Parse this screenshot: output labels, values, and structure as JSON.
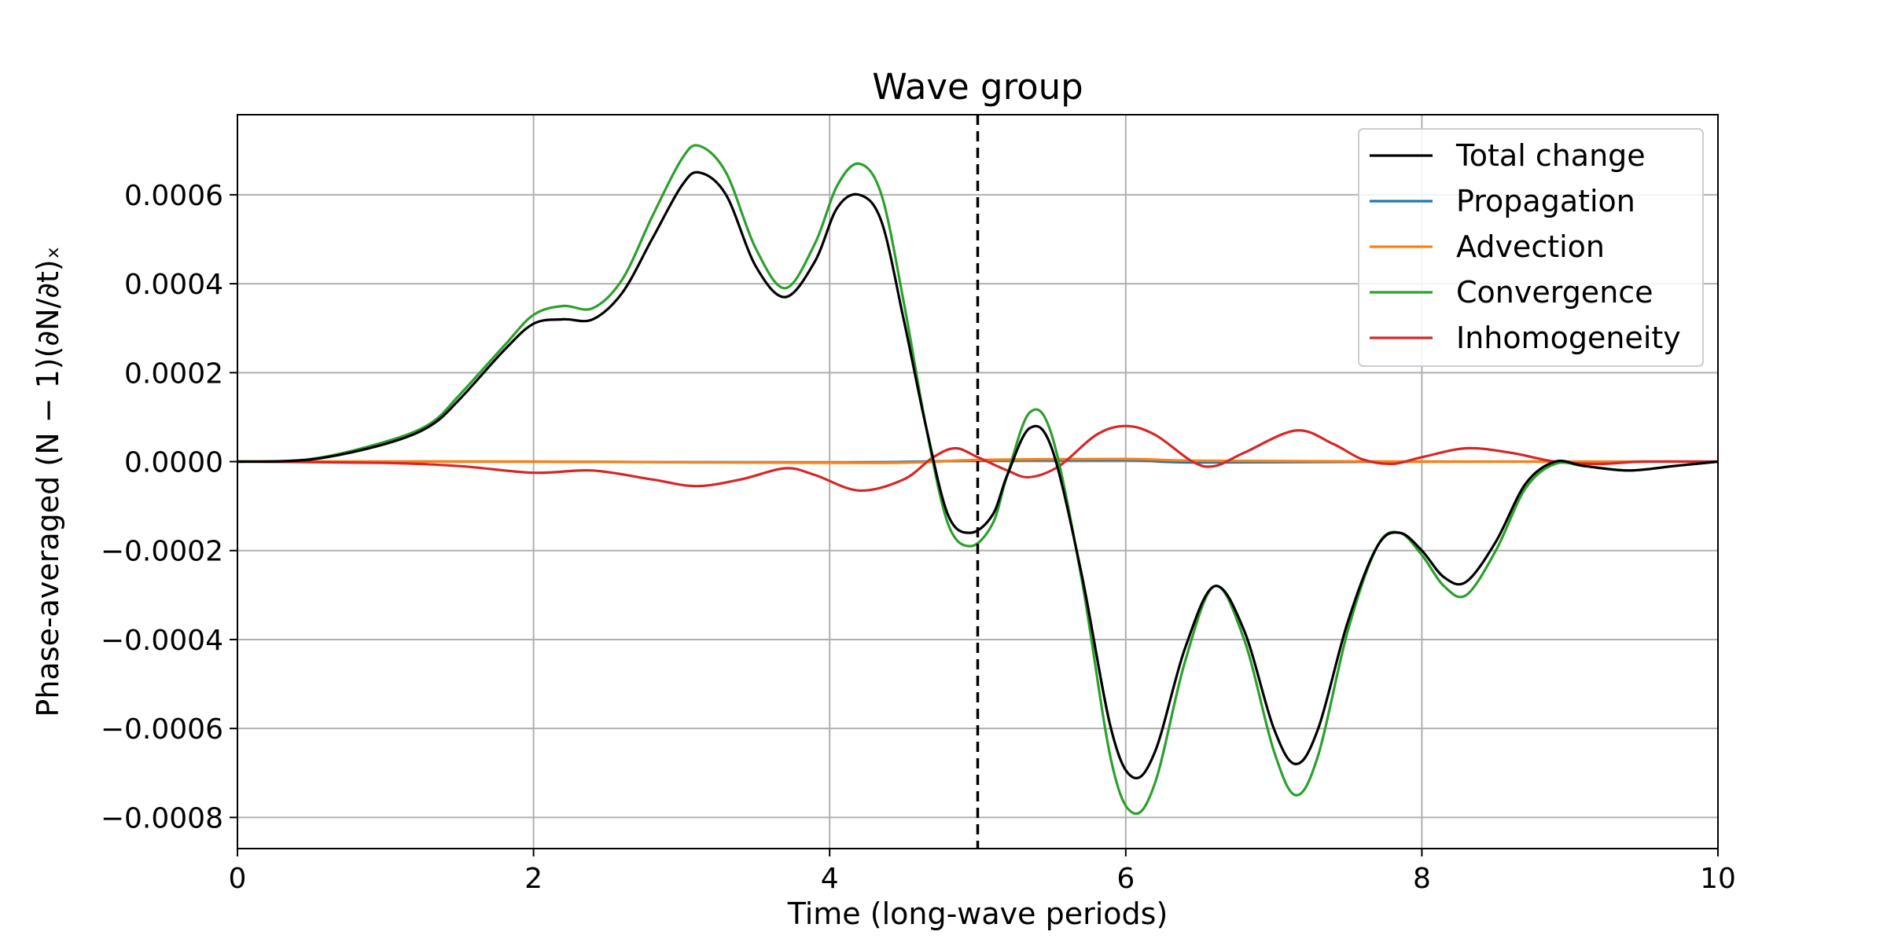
{
  "chart_data": {
    "type": "line",
    "title": "Wave group",
    "xlabel": "Time (long-wave periods)",
    "ylabel": "Phase-averaged (N − 1)(∂N/∂t)ₓ",
    "xlim": [
      0,
      10
    ],
    "ylim": [
      -0.00087,
      0.00078
    ],
    "xticks": [
      0,
      2,
      4,
      6,
      8,
      10
    ],
    "xtick_labels": [
      "0",
      "2",
      "4",
      "6",
      "8",
      "10"
    ],
    "yticks": [
      0.0006,
      0.0004,
      0.0002,
      0.0,
      -0.0002,
      -0.0004,
      -0.0006,
      -0.0008
    ],
    "ytick_labels": [
      "0.0006",
      "0.0004",
      "0.0002",
      "0.0000",
      "−0.0002",
      "−0.0004",
      "−0.0006",
      "−0.0008"
    ],
    "grid": true,
    "legend_position": "top-right",
    "vline": {
      "x": 5,
      "style": "dashed",
      "color": "#000000"
    },
    "series": [
      {
        "name": "Total change",
        "color": "#000000",
        "points": [
          [
            0,
            0
          ],
          [
            0.5,
            5e-06
          ],
          [
            1.0,
            4e-05
          ],
          [
            1.3,
            8e-05
          ],
          [
            1.5,
            0.00014
          ],
          [
            1.8,
            0.00025
          ],
          [
            2.0,
            0.00031
          ],
          [
            2.2,
            0.00032
          ],
          [
            2.4,
            0.00032
          ],
          [
            2.6,
            0.00038
          ],
          [
            2.8,
            0.0005
          ],
          [
            3.0,
            0.00062
          ],
          [
            3.12,
            0.00065
          ],
          [
            3.3,
            0.0006
          ],
          [
            3.5,
            0.00044
          ],
          [
            3.7,
            0.00037
          ],
          [
            3.9,
            0.00045
          ],
          [
            4.05,
            0.00057
          ],
          [
            4.2,
            0.0006
          ],
          [
            4.35,
            0.00054
          ],
          [
            4.5,
            0.00032
          ],
          [
            4.65,
            8e-05
          ],
          [
            4.8,
            -0.00012
          ],
          [
            4.95,
            -0.00016
          ],
          [
            5.1,
            -0.00012
          ],
          [
            5.2,
            -3e-05
          ],
          [
            5.35,
            7.5e-05
          ],
          [
            5.5,
            3e-05
          ],
          [
            5.7,
            -0.00025
          ],
          [
            5.9,
            -0.0006
          ],
          [
            6.05,
            -0.00071
          ],
          [
            6.2,
            -0.00065
          ],
          [
            6.4,
            -0.00042
          ],
          [
            6.6,
            -0.00028
          ],
          [
            6.8,
            -0.00038
          ],
          [
            7.0,
            -0.0006
          ],
          [
            7.15,
            -0.00068
          ],
          [
            7.3,
            -0.0006
          ],
          [
            7.5,
            -0.00036
          ],
          [
            7.7,
            -0.00019
          ],
          [
            7.85,
            -0.00016
          ],
          [
            8.0,
            -0.0002
          ],
          [
            8.15,
            -0.00026
          ],
          [
            8.3,
            -0.00027
          ],
          [
            8.5,
            -0.00018
          ],
          [
            8.7,
            -5e-05
          ],
          [
            8.9,
            0.0
          ],
          [
            9.1,
            -1e-05
          ],
          [
            9.4,
            -2e-05
          ],
          [
            9.7,
            -1e-05
          ],
          [
            10,
            0
          ]
        ]
      },
      {
        "name": "Propagation",
        "color": "#1f77b4",
        "points": [
          [
            0,
            0
          ],
          [
            2,
            0
          ],
          [
            4,
            -2e-06
          ],
          [
            5,
            2e-06
          ],
          [
            6,
            3e-06
          ],
          [
            6.5,
            -2e-06
          ],
          [
            8,
            0
          ],
          [
            10,
            0
          ]
        ]
      },
      {
        "name": "Advection",
        "color": "#ff7f0e",
        "points": [
          [
            0,
            0
          ],
          [
            2,
            0
          ],
          [
            4.3,
            -3e-06
          ],
          [
            5,
            4e-06
          ],
          [
            6,
            6e-06
          ],
          [
            6.5,
            2e-06
          ],
          [
            8,
            0
          ],
          [
            10,
            0
          ]
        ]
      },
      {
        "name": "Convergence",
        "color": "#2ca02c",
        "points": [
          [
            0,
            0
          ],
          [
            0.5,
            6e-06
          ],
          [
            1.0,
            4.5e-05
          ],
          [
            1.3,
            8.5e-05
          ],
          [
            1.5,
            0.00015
          ],
          [
            1.8,
            0.00026
          ],
          [
            2.0,
            0.00033
          ],
          [
            2.2,
            0.00035
          ],
          [
            2.4,
            0.000345
          ],
          [
            2.6,
            0.00041
          ],
          [
            2.8,
            0.00055
          ],
          [
            3.0,
            0.00068
          ],
          [
            3.12,
            0.00071
          ],
          [
            3.3,
            0.00065
          ],
          [
            3.5,
            0.00048
          ],
          [
            3.7,
            0.00039
          ],
          [
            3.9,
            0.00049
          ],
          [
            4.05,
            0.00062
          ],
          [
            4.2,
            0.00067
          ],
          [
            4.35,
            0.0006
          ],
          [
            4.5,
            0.00036
          ],
          [
            4.65,
            8e-05
          ],
          [
            4.8,
            -0.00014
          ],
          [
            4.95,
            -0.00019
          ],
          [
            5.1,
            -0.00014
          ],
          [
            5.2,
            -3e-05
          ],
          [
            5.35,
            0.00011
          ],
          [
            5.5,
            6e-05
          ],
          [
            5.7,
            -0.00026
          ],
          [
            5.9,
            -0.00067
          ],
          [
            6.05,
            -0.00079
          ],
          [
            6.2,
            -0.00072
          ],
          [
            6.4,
            -0.00045
          ],
          [
            6.6,
            -0.00028
          ],
          [
            6.8,
            -0.0004
          ],
          [
            7.0,
            -0.00065
          ],
          [
            7.15,
            -0.00075
          ],
          [
            7.3,
            -0.00066
          ],
          [
            7.5,
            -0.00038
          ],
          [
            7.7,
            -0.00019
          ],
          [
            7.85,
            -0.00016
          ],
          [
            8.0,
            -0.00021
          ],
          [
            8.15,
            -0.00028
          ],
          [
            8.3,
            -0.0003
          ],
          [
            8.5,
            -0.0002
          ],
          [
            8.7,
            -6e-05
          ],
          [
            8.9,
            -5e-06
          ],
          [
            9.1,
            -1e-05
          ],
          [
            9.4,
            -2e-05
          ],
          [
            9.7,
            -1e-05
          ],
          [
            10,
            0
          ]
        ]
      },
      {
        "name": "Inhomogeneity",
        "color": "#d62728",
        "points": [
          [
            0,
            0
          ],
          [
            1.0,
            -3e-06
          ],
          [
            1.5,
            -1e-05
          ],
          [
            2.0,
            -2.5e-05
          ],
          [
            2.4,
            -2e-05
          ],
          [
            2.8,
            -4e-05
          ],
          [
            3.1,
            -5.5e-05
          ],
          [
            3.4,
            -4e-05
          ],
          [
            3.7,
            -1.5e-05
          ],
          [
            3.9,
            -3e-05
          ],
          [
            4.2,
            -6.5e-05
          ],
          [
            4.5,
            -4e-05
          ],
          [
            4.7,
            1e-05
          ],
          [
            4.85,
            3e-05
          ],
          [
            5.0,
            1e-05
          ],
          [
            5.2,
            -2e-05
          ],
          [
            5.35,
            -3.5e-05
          ],
          [
            5.55,
            -1e-05
          ],
          [
            5.8,
            6e-05
          ],
          [
            6.0,
            8e-05
          ],
          [
            6.2,
            6e-05
          ],
          [
            6.45,
            0.0
          ],
          [
            6.6,
            -1e-05
          ],
          [
            6.8,
            2e-05
          ],
          [
            7.15,
            7e-05
          ],
          [
            7.4,
            4e-05
          ],
          [
            7.6,
            5e-06
          ],
          [
            7.8,
            -5e-06
          ],
          [
            8.0,
            1e-05
          ],
          [
            8.3,
            3e-05
          ],
          [
            8.6,
            2e-05
          ],
          [
            8.9,
            0.0
          ],
          [
            9.2,
            -5e-06
          ],
          [
            9.5,
            0.0
          ],
          [
            10,
            0
          ]
        ]
      }
    ]
  }
}
